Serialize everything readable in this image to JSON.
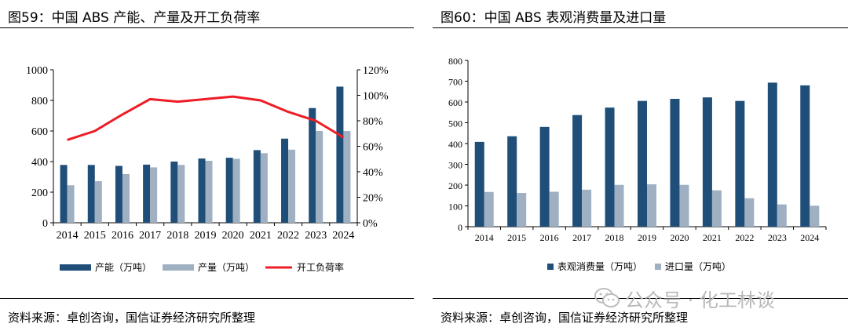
{
  "left": {
    "title": "图59：中国 ABS 产能、产量及开工负荷率",
    "source": "资料来源：卓创咨询，国信证券经济研究所整理"
  },
  "right": {
    "title": "图60：中国 ABS 表观消费量及进口量",
    "source": "资料来源：卓创咨询，国信证券经济研究所整理"
  },
  "watermark": {
    "text": "公众号 · 化工林谈",
    "icon": "wechat-icon"
  },
  "colors": {
    "navy": "#1f4e79",
    "gray": "#9fb0c2",
    "red": "#ee1c25"
  },
  "chart_data": [
    {
      "type": "bar",
      "categories": [
        "2014",
        "2015",
        "2016",
        "2017",
        "2018",
        "2019",
        "2020",
        "2021",
        "2022",
        "2023",
        "2024"
      ],
      "series": [
        {
          "name": "产能（万吨）",
          "type": "bar",
          "axis": "left",
          "color": "#1f4e79",
          "values": [
            378,
            378,
            372,
            380,
            400,
            420,
            425,
            475,
            550,
            750,
            890
          ]
        },
        {
          "name": "产量（万吨）",
          "type": "bar",
          "axis": "left",
          "color": "#9fb0c2",
          "values": [
            245,
            272,
            318,
            362,
            378,
            405,
            418,
            455,
            478,
            600,
            600
          ]
        },
        {
          "name": "开工负荷率",
          "type": "line",
          "axis": "right",
          "color": "#ee1c25",
          "values": [
            65,
            72,
            85,
            97,
            95,
            97,
            99,
            96,
            87,
            80,
            67
          ]
        }
      ],
      "ylim": [
        0,
        1000
      ],
      "yticks": [
        "0",
        "200",
        "400",
        "600",
        "800",
        "1000"
      ],
      "y2lim": [
        0,
        120
      ],
      "y2ticks": [
        "0%",
        "20%",
        "40%",
        "60%",
        "80%",
        "100%",
        "120%"
      ],
      "legend": "bottom",
      "grid": false
    },
    {
      "type": "bar",
      "categories": [
        "2014",
        "2015",
        "2016",
        "2017",
        "2018",
        "2019",
        "2020",
        "2021",
        "2022",
        "2023",
        "2024"
      ],
      "series": [
        {
          "name": "表观消费量（万吨）",
          "color": "#1f4e79",
          "values": [
            408,
            435,
            480,
            537,
            573,
            605,
            615,
            622,
            605,
            693,
            680
          ]
        },
        {
          "name": "进口量（万吨）",
          "color": "#9fb0c2",
          "values": [
            167,
            162,
            168,
            178,
            201,
            204,
            201,
            175,
            137,
            107,
            101
          ]
        }
      ],
      "ylim": [
        0,
        800
      ],
      "yticks": [
        "0",
        "100",
        "200",
        "300",
        "400",
        "500",
        "600",
        "700",
        "800"
      ],
      "legend": "bottom",
      "grid": false
    }
  ]
}
